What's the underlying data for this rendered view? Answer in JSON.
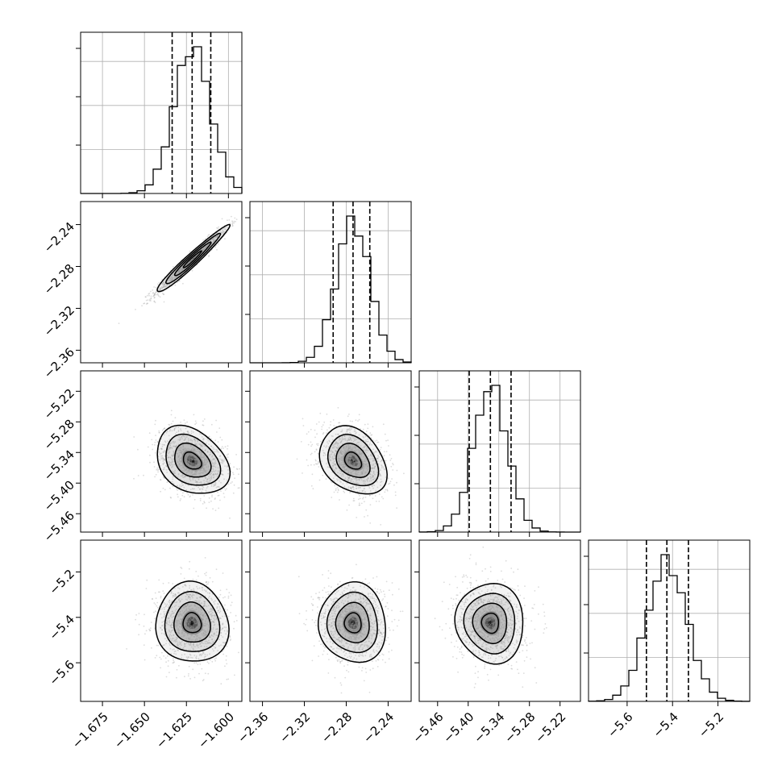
{
  "chart_data": {
    "type": "corner",
    "style": {
      "histogram_color": "#000000",
      "scatter_color": "#9a9a9a",
      "grid_color": "#b0b0b0",
      "grid": true
    },
    "quantiles": [
      0.16,
      0.5,
      0.84
    ],
    "parameters": [
      {
        "range": [
          -1.688,
          -1.592
        ],
        "ticks": [
          -1.675,
          -1.65,
          -1.625,
          -1.6
        ],
        "tick_labels": [
          "−1.675",
          "−1.650",
          "−1.625",
          "−1.600"
        ],
        "median": -1.6216,
        "sigma": 0.0108,
        "quantile_values": [
          -1.6335,
          -1.6216,
          -1.6105
        ]
      },
      {
        "range": [
          -2.372,
          -2.218
        ],
        "ticks": [
          -2.36,
          -2.32,
          -2.28,
          -2.24
        ],
        "tick_labels": [
          "−2.36",
          "−2.32",
          "−2.28",
          "−2.24"
        ],
        "median": -2.2735,
        "sigma": 0.016,
        "quantile_values": [
          -2.2925,
          -2.2735,
          -2.2575
        ]
      },
      {
        "range": [
          -5.496,
          -5.18
        ],
        "ticks": [
          -5.46,
          -5.4,
          -5.34,
          -5.28,
          -5.22
        ],
        "tick_labels": [
          "−5.46",
          "−5.40",
          "−5.34",
          "−5.28",
          "−5.22"
        ],
        "median": -5.3565,
        "sigma": 0.0333,
        "quantile_values": [
          -5.398,
          -5.3565,
          -5.316
        ]
      },
      {
        "range": [
          -5.77,
          -5.06
        ],
        "ticks": [
          -5.6,
          -5.4,
          -5.2
        ],
        "tick_labels": [
          "−5.6",
          "−5.4",
          "−5.2"
        ],
        "median": -5.425,
        "sigma": 0.088,
        "quantile_values": [
          -5.515,
          -5.425,
          -5.33
        ]
      }
    ],
    "correlations": [
      {
        "pair": [
          0,
          1
        ],
        "rho": 0.97
      },
      {
        "pair": [
          0,
          2
        ],
        "rho": -0.3
      },
      {
        "pair": [
          1,
          2
        ],
        "rho": -0.3
      },
      {
        "pair": [
          0,
          3
        ],
        "rho": -0.05
      },
      {
        "pair": [
          1,
          3
        ],
        "rho": -0.05
      },
      {
        "pair": [
          2,
          3
        ],
        "rho": -0.05
      }
    ]
  }
}
